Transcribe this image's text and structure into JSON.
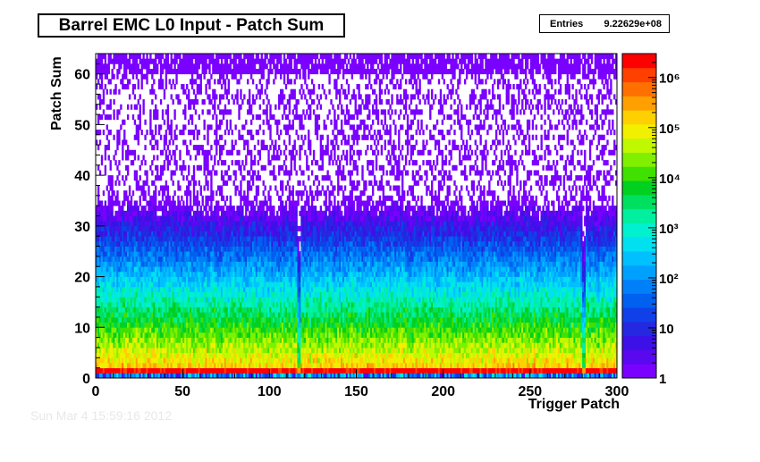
{
  "chart_data": {
    "type": "heatmap",
    "title": "Barrel EMC L0 Input - Patch Sum",
    "xlabel": "Trigger Patch",
    "ylabel": "Patch Sum",
    "xlim": [
      0,
      300
    ],
    "ylim": [
      0,
      64
    ],
    "x_ticks": [
      "0",
      "50",
      "100",
      "150",
      "200",
      "250",
      "300"
    ],
    "y_ticks": [
      "0",
      "10",
      "20",
      "30",
      "40",
      "50",
      "60"
    ],
    "z_scale": "log",
    "zlim": [
      1,
      3000000
    ],
    "z_ticks": [
      "1",
      "10",
      "10²",
      "10³",
      "10⁴",
      "10⁵",
      "10⁶"
    ],
    "stats": {
      "label": "Entries",
      "value": "9.22629e+08"
    },
    "features": {
      "peak_patch_sum_bin": 1,
      "low_count_columns": [
        116,
        117,
        280,
        281
      ]
    }
  },
  "footer_text": "Sun Mar 4 15:59:16 2012"
}
